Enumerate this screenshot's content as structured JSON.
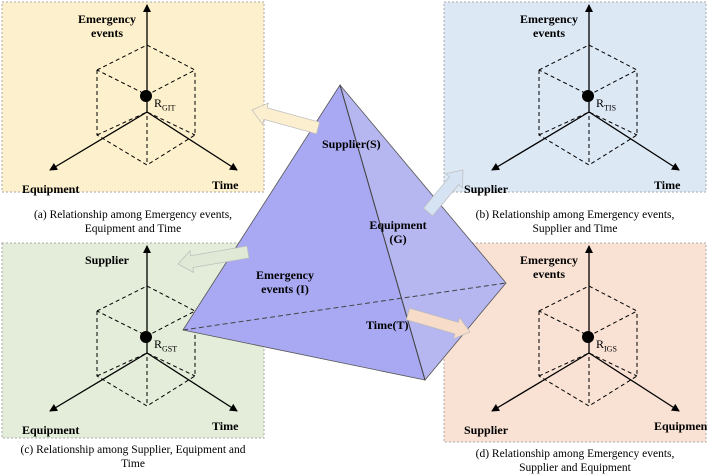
{
  "panels": [
    {
      "axis_top": "Emergency events",
      "axis_left": "Equipment",
      "axis_right": "Time",
      "point": "R",
      "point_sub": "GIT",
      "caption": "(a) Relationship among Emergency events, Equipment and Time"
    },
    {
      "axis_top": "Emergency events",
      "axis_left": "Supplier",
      "axis_right": "Time",
      "point": "R",
      "point_sub": "TIS",
      "caption": "(b) Relationship among Emergency events, Supplier and Time"
    },
    {
      "axis_top": "Supplier",
      "axis_left": "Equipment",
      "axis_right": "Time",
      "point": "R",
      "point_sub": "GST",
      "caption": "(c) Relationship among Supplier, Equipment and Time"
    },
    {
      "axis_top": "Emergency events",
      "axis_left": "Supplier",
      "axis_right": "Equipment",
      "point": "R",
      "point_sub": "IGS",
      "caption": "(d) Relationship among Emergency events, Supplier and Equipment"
    }
  ],
  "tetrahedron": {
    "labels": [
      "Supplier(S)",
      "Equipment (G)",
      "Emergency events (I)",
      "Time(T)"
    ]
  }
}
